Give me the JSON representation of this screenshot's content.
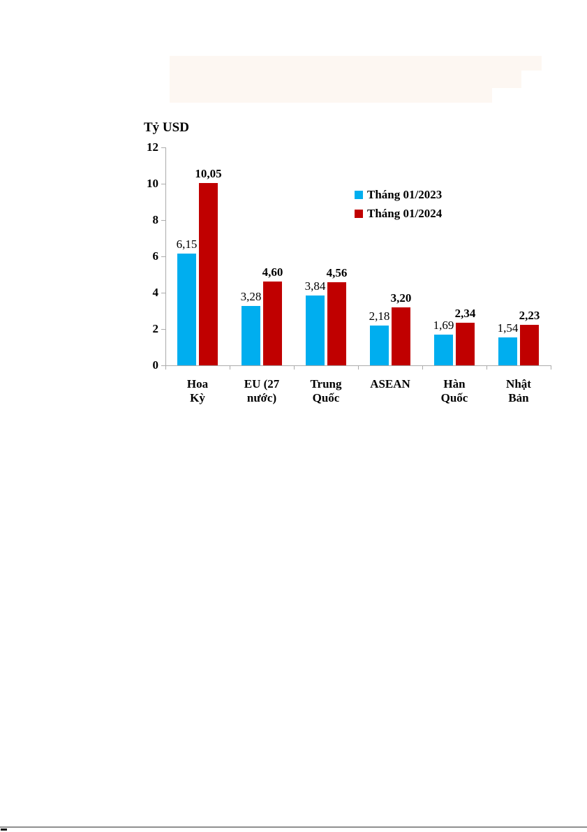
{
  "page": {
    "background": "#FFFFFF",
    "highlight_block_color": "#FDF7F2",
    "bottom_rule_color": "#8F8F8F",
    "bottom_mark_color": "#141414"
  },
  "chart_data": {
    "type": "bar",
    "title": "",
    "unit_label": "Tỷ USD",
    "categories": [
      "Hoa Kỳ",
      "EU (27 nước)",
      "Trung Quốc",
      "ASEAN",
      "Hàn Quốc",
      "Nhật Bản"
    ],
    "category_label_lines": [
      [
        "Hoa",
        "Kỳ"
      ],
      [
        "EU (27",
        "nước)"
      ],
      [
        "Trung",
        "Quốc"
      ],
      [
        "ASEAN"
      ],
      [
        "Hàn",
        "Quốc"
      ],
      [
        "Nhật",
        "Bản"
      ]
    ],
    "series": [
      {
        "name": "Tháng 01/2023",
        "color": "#00AEEF",
        "values": [
          6.15,
          3.28,
          3.84,
          2.18,
          1.69,
          1.54
        ],
        "value_labels": [
          "6,15",
          "3,28",
          "3,84",
          "2,18",
          "1,69",
          "1,54"
        ],
        "label_bold": false
      },
      {
        "name": "Tháng 01/2024",
        "color": "#C00000",
        "values": [
          10.05,
          4.6,
          4.56,
          3.2,
          2.34,
          2.23
        ],
        "value_labels": [
          "10,05",
          "4,60",
          "4,56",
          "3,20",
          "2,34",
          "2,23"
        ],
        "label_bold": true
      }
    ],
    "ylim": [
      0,
      12
    ],
    "yticks": [
      0,
      2,
      4,
      6,
      8,
      10,
      12
    ],
    "ytick_labels": [
      "0",
      "2",
      "4",
      "6",
      "8",
      "10",
      "12"
    ],
    "grid": false,
    "legend_position": "inside-top-right",
    "axis_color": "#ABABAB"
  }
}
